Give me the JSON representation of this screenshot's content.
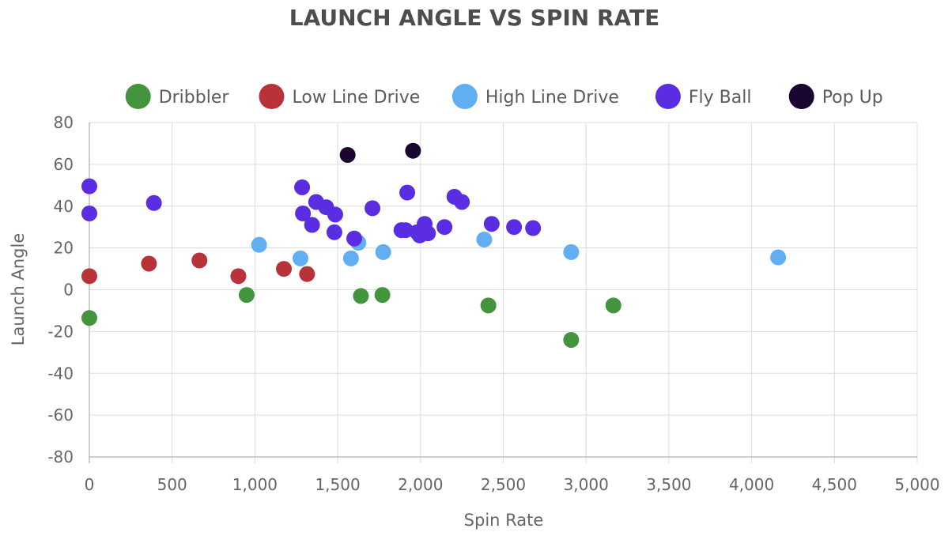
{
  "chart_data": {
    "type": "scatter",
    "title": "LAUNCH ANGLE VS SPIN RATE",
    "xlabel": "Spin Rate",
    "ylabel": "Launch Angle",
    "xlim": [
      0,
      5000
    ],
    "ylim": [
      -80,
      80
    ],
    "x_ticks": [
      0,
      500,
      1000,
      1500,
      2000,
      2500,
      3000,
      3500,
      4000,
      4500,
      5000
    ],
    "x_tick_labels": [
      "0",
      "500",
      "1,000",
      "1,500",
      "2,000",
      "2,500",
      "3,000",
      "3,500",
      "4,000",
      "4,500",
      "5,000"
    ],
    "y_ticks": [
      80,
      60,
      40,
      20,
      0,
      -20,
      -40,
      -60,
      -80
    ],
    "y_tick_labels": [
      "80",
      "60",
      "40",
      "20",
      "0",
      "-20",
      "-40",
      "-60",
      "-80"
    ],
    "grid": true,
    "legend_position": "top",
    "series": [
      {
        "name": "Dribbler",
        "color": "#43943c",
        "points": [
          [
            0,
            -13.5
          ],
          [
            950,
            -2.5
          ],
          [
            1640,
            -3
          ],
          [
            1770,
            -2.5
          ],
          [
            2410,
            -7.5
          ],
          [
            2910,
            -24
          ],
          [
            3165,
            -7.5
          ]
        ]
      },
      {
        "name": "Low Line Drive",
        "color": "#b8323a",
        "points": [
          [
            0,
            6.5
          ],
          [
            360,
            12.5
          ],
          [
            665,
            14
          ],
          [
            900,
            6.5
          ],
          [
            1175,
            10
          ],
          [
            1315,
            7.5
          ]
        ]
      },
      {
        "name": "High Line Drive",
        "color": "#62aef2",
        "points": [
          [
            1025,
            21.5
          ],
          [
            1275,
            15
          ],
          [
            1580,
            15
          ],
          [
            1625,
            22.5
          ],
          [
            1775,
            18
          ],
          [
            2385,
            24
          ],
          [
            2910,
            18
          ],
          [
            4160,
            15.5
          ]
        ]
      },
      {
        "name": "Fly Ball",
        "color": "#5a2de3",
        "points": [
          [
            0,
            49.5
          ],
          [
            0,
            36.5
          ],
          [
            390,
            41.5
          ],
          [
            1285,
            49
          ],
          [
            1290,
            36.5
          ],
          [
            1345,
            31
          ],
          [
            1370,
            42
          ],
          [
            1430,
            39.5
          ],
          [
            1480,
            27.5
          ],
          [
            1485,
            36
          ],
          [
            1600,
            24.5
          ],
          [
            1710,
            39
          ],
          [
            1885,
            28.5
          ],
          [
            1910,
            28.5
          ],
          [
            1920,
            46.5
          ],
          [
            1980,
            27.5
          ],
          [
            1995,
            26
          ],
          [
            2025,
            31.5
          ],
          [
            2045,
            27
          ],
          [
            2145,
            30
          ],
          [
            2205,
            44.5
          ],
          [
            2250,
            42
          ],
          [
            2430,
            31.5
          ],
          [
            2565,
            30
          ],
          [
            2680,
            29.5
          ]
        ]
      },
      {
        "name": "Pop Up",
        "color": "#1a0530",
        "points": [
          [
            1560,
            64.5
          ],
          [
            1955,
            66.5
          ]
        ]
      }
    ]
  }
}
